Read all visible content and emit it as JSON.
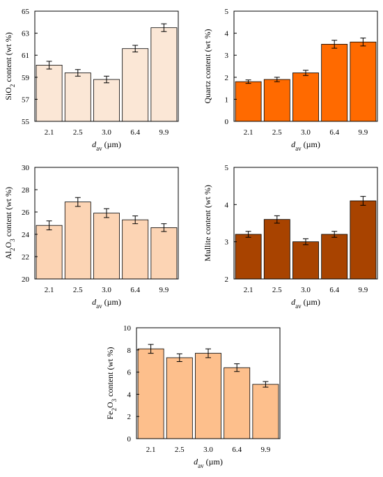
{
  "chart_data": [
    {
      "type": "bar",
      "categories": [
        "2.1",
        "2.5",
        "3.0",
        "6.4",
        "9.9"
      ],
      "values": [
        60.1,
        59.4,
        58.8,
        61.6,
        63.5
      ],
      "errors": [
        0.35,
        0.3,
        0.3,
        0.3,
        0.35
      ],
      "ylim": [
        55,
        65
      ],
      "yticks": [
        "55",
        "57",
        "59",
        "61",
        "63",
        "65"
      ],
      "ylabel": {
        "pre": "SiO",
        "sub": "2",
        "post": " content (wt %)"
      },
      "xlabel": {
        "italic": "d",
        "sub": "av",
        "post": " (µm)"
      },
      "color": "#fbe7d6"
    },
    {
      "type": "bar",
      "categories": [
        "2.1",
        "2.5",
        "3.0",
        "6.4",
        "9.9"
      ],
      "values": [
        1.8,
        1.9,
        2.2,
        3.5,
        3.6
      ],
      "errors": [
        0.08,
        0.1,
        0.12,
        0.18,
        0.18
      ],
      "ylim": [
        0,
        5
      ],
      "yticks": [
        "0",
        "1",
        "2",
        "3",
        "4",
        "5"
      ],
      "ylabel": {
        "pre": "Quartz content (wt %)",
        "sub": "",
        "post": ""
      },
      "xlabel": {
        "italic": "d",
        "sub": "av",
        "post": " (µm)"
      },
      "color": "#ff6a00"
    },
    {
      "type": "bar",
      "categories": [
        "2.1",
        "2.5",
        "3.0",
        "6.4",
        "9.9"
      ],
      "values": [
        24.8,
        26.9,
        25.9,
        25.3,
        24.6
      ],
      "errors": [
        0.4,
        0.4,
        0.4,
        0.35,
        0.35
      ],
      "ylim": [
        20,
        30
      ],
      "yticks": [
        "20",
        "22",
        "24",
        "26",
        "28",
        "30"
      ],
      "ylabel": {
        "pre": "Al",
        "sub": "2",
        "mid": "O",
        "sub2": "3",
        "post": " content (wt %)"
      },
      "xlabel": {
        "italic": "d",
        "sub": "av",
        "post": " (µm)"
      },
      "color": "#fcd4b4"
    },
    {
      "type": "bar",
      "categories": [
        "2.1",
        "2.5",
        "3.0",
        "6.4",
        "9.9"
      ],
      "values": [
        3.2,
        3.6,
        3.0,
        3.2,
        4.1
      ],
      "errors": [
        0.08,
        0.1,
        0.08,
        0.08,
        0.12
      ],
      "ylim": [
        2,
        5
      ],
      "yticks": [
        "2",
        "3",
        "4",
        "5"
      ],
      "ylabel": {
        "pre": "Mullite content (wt %)",
        "sub": "",
        "post": ""
      },
      "xlabel": {
        "italic": "d",
        "sub": "av",
        "post": " (µm)"
      },
      "color": "#a84300"
    },
    {
      "type": "bar",
      "categories": [
        "2.1",
        "2.5",
        "3.0",
        "6.4",
        "9.9"
      ],
      "values": [
        8.1,
        7.3,
        7.7,
        6.4,
        4.9
      ],
      "errors": [
        0.4,
        0.35,
        0.4,
        0.35,
        0.25
      ],
      "ylim": [
        0,
        10
      ],
      "yticks": [
        "0",
        "2",
        "4",
        "6",
        "8",
        "10"
      ],
      "ylabel": {
        "pre": "Fe",
        "sub": "2",
        "mid": "O",
        "sub2": "3",
        "post": " content (wt %)"
      },
      "xlabel": {
        "italic": "d",
        "sub": "av",
        "post": " (µm)"
      },
      "color": "#fdbf8c"
    }
  ]
}
